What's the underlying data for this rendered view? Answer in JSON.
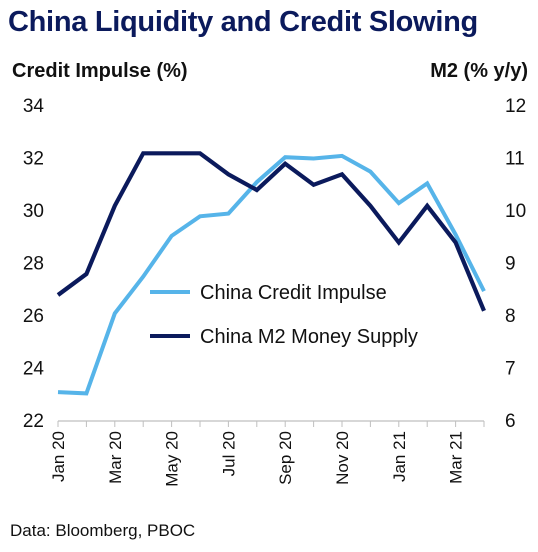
{
  "title": "China Liquidity and Credit Slowing",
  "source": "Data: Bloomberg, PBOC",
  "colors": {
    "title": "#0b1a5c",
    "credit_impulse": "#56b4e9",
    "m2": "#0b1a5c"
  },
  "chart_data": {
    "type": "line",
    "x": [
      "Jan 20",
      "Feb 20",
      "Mar 20",
      "Apr 20",
      "May 20",
      "Jun 20",
      "Jul 20",
      "Aug 20",
      "Sep 20",
      "Oct 20",
      "Nov 20",
      "Dec 20",
      "Jan 21",
      "Feb 21",
      "Mar 21",
      "Apr 21"
    ],
    "x_tick_labels": [
      "Jan 20",
      "Mar 20",
      "May 20",
      "Jul 20",
      "Sep 20",
      "Nov 20",
      "Jan 21",
      "Mar 21"
    ],
    "ylabel_left": "Credit Impulse (%)",
    "ylabel_right": "M2 (% y/y)",
    "ylim_left": [
      22,
      34
    ],
    "ylim_right": [
      6,
      12
    ],
    "yticks_left": [
      "22",
      "24",
      "26",
      "28",
      "30",
      "32",
      "34"
    ],
    "yticks_right": [
      "6",
      "7",
      "8",
      "9",
      "10",
      "11",
      "12"
    ],
    "grid": false,
    "legend_position": "center",
    "series": [
      {
        "name": "China Credit Impulse",
        "axis": "left",
        "values": [
          23.1,
          23.05,
          26.1,
          27.5,
          29.05,
          29.8,
          29.9,
          31.1,
          32.05,
          32.0,
          32.1,
          31.5,
          30.3,
          31.05,
          29.1,
          26.95
        ]
      },
      {
        "name": "China M2 Money Supply",
        "axis": "right",
        "values": [
          8.4,
          8.8,
          10.1,
          11.1,
          11.1,
          11.1,
          10.7,
          10.4,
          10.9,
          10.5,
          10.7,
          10.1,
          9.4,
          10.1,
          9.4,
          8.1
        ]
      }
    ]
  }
}
